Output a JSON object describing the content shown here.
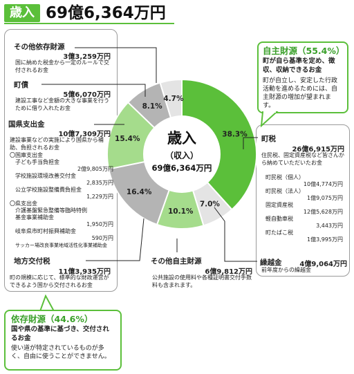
{
  "header": {
    "badge": "歳入",
    "amount": "69億6,364万円"
  },
  "center": {
    "title": "歳入",
    "subtitle": "（収入）",
    "amount": "69億6,364万円"
  },
  "colors": {
    "self": "#5bbf3a",
    "self_light": "#a5dc8c",
    "dep": "#b4b4b4",
    "dep_light": "#e4e4e4"
  },
  "chart_data": {
    "type": "pie",
    "start": "12 o'clock, clockwise",
    "slices": [
      {
        "label": "町税",
        "percent": 38.3,
        "color": "#5bbf3a"
      },
      {
        "label": "繰越金",
        "percent": 7.0,
        "color": "#e4e4e4"
      },
      {
        "label": "その他自主財源",
        "percent": 10.1,
        "color": "#a5dc8c"
      },
      {
        "label": "地方交付税",
        "percent": 16.4,
        "color": "#b4b4b4"
      },
      {
        "label": "国県支出金",
        "percent": 15.4,
        "color": "#a5dc8c"
      },
      {
        "label": "町債",
        "percent": 8.1,
        "color": "#b4b4b4"
      },
      {
        "label": "その他依存財源",
        "percent": 4.7,
        "color": "#e4e4e4"
      }
    ]
  },
  "self_source": {
    "title": "自主財源（55.4%）",
    "strong": "町が自ら基準を定め、徴収、収納できるお金",
    "text": "町が自立し、安定した行政活動を進めるためには、自主財源の増加が望まれます。"
  },
  "dep_source": {
    "title": "依存財源（44.6%）",
    "strong": "国や県の基準に基づき、交付されるお金",
    "text": "使い道が特定されているものが多く、自由に使うことができません。"
  },
  "items": {
    "other_dep": {
      "label": "その他依存財源",
      "amount": "3億3,259万円",
      "desc": "国に納めた税金から一定のルールで交付されるお金"
    },
    "bond": {
      "label": "町債",
      "amount": "5億6,070万円",
      "desc": "建設工事など金額の大きな事業を行うために借り入れたお金"
    },
    "subsidy": {
      "label": "国県支出金",
      "amount": "10億7,309万円",
      "desc": "建設事業などの実施により国県から補助、負担されるお金"
    },
    "subsidy_subs": [
      {
        "name": "〇国庫支出金",
        "value": ""
      },
      {
        "name": "子ども手当負担金",
        "value": "2億9,805万円"
      },
      {
        "name": "学校施設環境改善交付金",
        "value": "2,835万円"
      },
      {
        "name": "公立学校施設整備費負担金",
        "value": "1,229万円"
      },
      {
        "name": "〇県支出金",
        "value": ""
      },
      {
        "name": "介護基盤緊急整備等臨時特例基金事業補助金",
        "value": "1,950万円"
      },
      {
        "name": "岐阜県市町村振興補助金",
        "value": "590万円"
      },
      {
        "name": "サッカー場改良事業地域活性化事業補助金",
        "value": ""
      }
    ],
    "local_tax": {
      "label": "地方交付税",
      "amount": "11億3,935万円",
      "desc": "町の規模に応じて、標準的な財政運営ができるよう国から交付されるお金"
    },
    "town_tax": {
      "label": "町税",
      "amount": "26億6,915万円",
      "desc": "住民税、固定資産税など皆さんから納めていただいたお金"
    },
    "town_tax_subs": [
      {
        "name": "町民税（個人）",
        "value": "10億4,774万円"
      },
      {
        "name": "町民税（法人）",
        "value": "1億9,075万円"
      },
      {
        "name": "固定資産税",
        "value": "12億5,628万円"
      },
      {
        "name": "軽自動車税",
        "value": "3,443万円"
      },
      {
        "name": "町たばこ税",
        "value": "1億3,995万円"
      }
    ],
    "other_self": {
      "label": "その他自主財源",
      "amount": "6億9,812万円",
      "desc": "公共施設の使用料や各種証明書交付手数料も含まれます。"
    },
    "carryover": {
      "label": "繰越金",
      "amount": "4億9,064万円",
      "desc": "前年度からの繰越金"
    }
  }
}
